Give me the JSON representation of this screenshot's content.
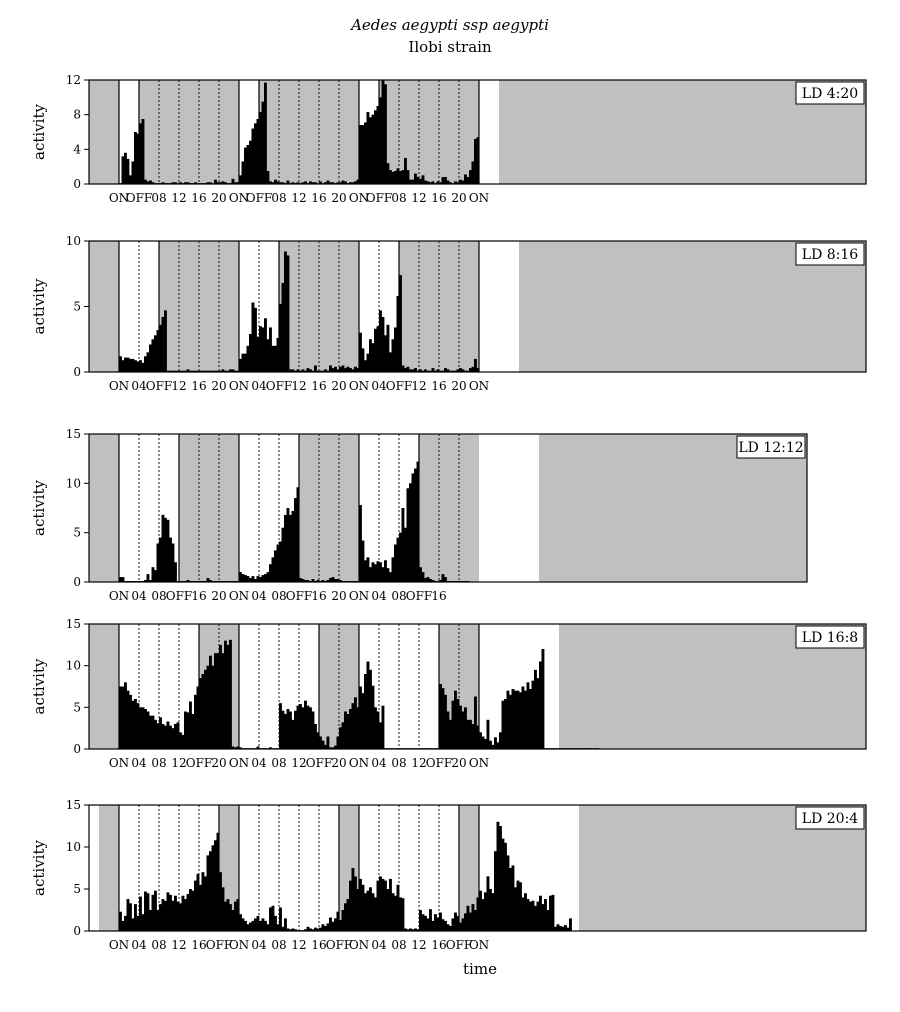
{
  "title": "Aedes aegypti ssp aegypti",
  "subtitle": "Ilobi strain",
  "xlabel": "time",
  "ylabel": "activity",
  "colors": {
    "dark": "#c0c0c0",
    "bar": "#000000",
    "light": "#ffffff"
  },
  "chart_data": [
    {
      "type": "bar",
      "label": "LD 4:20",
      "light_hours": 4,
      "ylim": [
        0,
        12
      ],
      "yticks": [
        0,
        4,
        8,
        12
      ],
      "days": 3,
      "xticks": [
        "ON",
        "OFF",
        "08",
        "12",
        "16",
        "20",
        "ON",
        "OFF",
        "08",
        "12",
        "16",
        "20",
        "ON",
        "OFF",
        "08",
        "12",
        "16",
        "20",
        "ON"
      ],
      "values": [
        0.1,
        3.2,
        3.6,
        2.9,
        1,
        2.6,
        6,
        5.8,
        7,
        7.5,
        0.5,
        0.3,
        0.4,
        0.2,
        0.1,
        0.1,
        0.1,
        0.2,
        0.1,
        0.1,
        0.1,
        0.2,
        0.2,
        0.1,
        0.2,
        0.1,
        0.2,
        0.2,
        0.1,
        0.1,
        0.2,
        0.1,
        0.1,
        0.1,
        0.1,
        0.2,
        0.2,
        0.1,
        0.5,
        0.2,
        0.2,
        0.3,
        0.2,
        0.1,
        0.1,
        0.6,
        0.2,
        0.2,
        1,
        2.6,
        4.2,
        4.5,
        5,
        6.4,
        7,
        7.5,
        8.3,
        9.5,
        11.7,
        1.5,
        0.3,
        0.2,
        0.5,
        0.3,
        0.2,
        0.2,
        0.1,
        0.4,
        0.1,
        0.2,
        0.1,
        0.2,
        0.1,
        0.2,
        0.3,
        0.1,
        0.3,
        0.2,
        0.2,
        0.1,
        0.3,
        0.1,
        0.2,
        0.4,
        0.2,
        0.2,
        0.1,
        0.2,
        0.2,
        0.4,
        0.3,
        0.1,
        0.2,
        0.2,
        0.3,
        0.5,
        6.8,
        6.8,
        7.1,
        8.3,
        7.7,
        8,
        8.5,
        9,
        10,
        12,
        11.5,
        2.4,
        1.6,
        1.4,
        1.5,
        1.8,
        1.5,
        1.6,
        3,
        1.6,
        0.5,
        0.5,
        1.2,
        0.8,
        0.6,
        1,
        0.4,
        0.3,
        0.2,
        0.3,
        0.1,
        0.3,
        0.2,
        0.8,
        0.8,
        0.4,
        0.2,
        0.1,
        0.3,
        0.2,
        0.5,
        0.4,
        1.1,
        0.8,
        1.6,
        2.6,
        5.2,
        5.4
      ]
    },
    {
      "type": "bar",
      "label": "LD 8:16",
      "light_hours": 8,
      "ylim": [
        0,
        10
      ],
      "yticks": [
        0,
        5,
        10
      ],
      "days": 3,
      "xticks": [
        "ON",
        "04",
        "OFF",
        "12",
        "16",
        "20",
        "ON",
        "04",
        "OFF",
        "12",
        "16",
        "20",
        "ON",
        "04",
        "OFF",
        "12",
        "16",
        "20",
        "ON"
      ],
      "values": [
        1.2,
        0.9,
        1.1,
        1.1,
        1,
        1,
        0.9,
        0.8,
        0.9,
        0.7,
        1.2,
        1.5,
        2.1,
        2.5,
        2.8,
        3.2,
        3.6,
        4.2,
        4.7,
        0.1,
        0.1,
        0.1,
        0.1,
        0.1,
        0.1,
        0.1,
        0.1,
        0.2,
        0.1,
        0.1,
        0.1,
        0.1,
        0.1,
        0.1,
        0.1,
        0.1,
        0.1,
        0.1,
        0.1,
        0.1,
        0.1,
        0.2,
        0.1,
        0.1,
        0.2,
        0.2,
        0.1,
        0.1,
        1,
        1.4,
        1.4,
        2,
        2.9,
        5.3,
        4.9,
        2.7,
        3.5,
        3.4,
        4.1,
        2.5,
        3.4,
        2,
        2,
        2.6,
        5.2,
        6.8,
        9.2,
        8.9,
        0.2,
        0.2,
        0.1,
        0.2,
        0.1,
        0.2,
        0.1,
        0.3,
        0.2,
        0.1,
        0.5,
        0.1,
        0.1,
        0.1,
        0.2,
        0.1,
        0.5,
        0.3,
        0.4,
        0.2,
        0.4,
        0.5,
        0.3,
        0.4,
        0.3,
        0.2,
        0.4,
        0.3,
        3,
        1.8,
        0.9,
        1.4,
        2.5,
        2.2,
        3.3,
        3.5,
        4.7,
        4.2,
        2.8,
        3.6,
        1.5,
        2.5,
        3.4,
        5.8,
        7.4,
        0.5,
        0.3,
        0.4,
        0.2,
        0.2,
        0.3,
        0.1,
        0.2,
        0.1,
        0.2,
        0.1,
        0.1,
        0.3,
        0.1,
        0.2,
        0.1,
        0.1,
        0.3,
        0.2,
        0.1,
        0.1,
        0.1,
        0.2,
        0.3,
        0.2,
        0.1,
        0.1,
        0.3,
        0.4,
        1,
        0.3
      ]
    },
    {
      "type": "bar",
      "label": "LD 12:12",
      "light_hours": 12,
      "ylim": [
        0,
        15
      ],
      "yticks": [
        0,
        5,
        10,
        15
      ],
      "days": 3,
      "partial_last_day_hours": 22,
      "xticks": [
        "ON",
        "04",
        "08",
        "OFF",
        "16",
        "20",
        "ON",
        "04",
        "08",
        "OFF",
        "16",
        "20",
        "ON",
        "04",
        "08",
        "OFF",
        "16"
      ],
      "values": [
        0.5,
        0.5,
        0.1,
        0.1,
        0.1,
        0.1,
        0.1,
        0.1,
        0.1,
        0.1,
        0.2,
        0.8,
        0.2,
        1.5,
        1.2,
        3.9,
        4.5,
        6.8,
        6.5,
        6.3,
        4.5,
        3.9,
        2,
        0.1,
        0.1,
        0.1,
        0.1,
        0.2,
        0.1,
        0.1,
        0.1,
        0.1,
        0.1,
        0.1,
        0.1,
        0.4,
        0.2,
        0.1,
        0.1,
        0.1,
        0.1,
        0.1,
        0.1,
        0.1,
        0.1,
        0.1,
        0.1,
        0.1,
        1,
        0.8,
        0.7,
        0.6,
        0.4,
        0.6,
        0.3,
        0.6,
        0.5,
        0.7,
        0.8,
        1,
        1.8,
        2.5,
        3.2,
        3.8,
        4.1,
        5.5,
        6.8,
        7.5,
        6.8,
        7.2,
        8.5,
        9.6,
        0.4,
        0.3,
        0.2,
        0.2,
        0.1,
        0.3,
        0.1,
        0.2,
        0.1,
        0.2,
        0.1,
        0.2,
        0.4,
        0.5,
        0.3,
        0.3,
        0.2,
        0.1,
        0.1,
        0.1,
        0.1,
        0.1,
        0.1,
        0.1,
        7.8,
        4.2,
        2.2,
        2.5,
        1.5,
        2,
        1.8,
        2.1,
        2,
        1.5,
        2.2,
        1.4,
        1,
        2.5,
        3.8,
        4.5,
        5,
        7.5,
        5.5,
        9.5,
        10,
        11,
        11.5,
        12.2,
        1.5,
        1,
        0.4,
        0.5,
        0.3,
        0.2,
        0.1,
        0.1,
        0.2,
        0.8,
        0.5,
        0.1,
        0.1,
        0.1,
        0.1,
        0.1,
        0.1,
        0.1,
        0.1,
        0.1
      ]
    },
    {
      "type": "bar",
      "label": "LD 16:8",
      "light_hours": 16,
      "ylim": [
        0,
        15
      ],
      "yticks": [
        0,
        5,
        10,
        15
      ],
      "days": 3,
      "xticks": [
        "ON",
        "04",
        "08",
        "12",
        "OFF",
        "20",
        "ON",
        "04",
        "08",
        "12",
        "OFF",
        "20",
        "ON",
        "04",
        "08",
        "12",
        "OFF",
        "20",
        "ON"
      ],
      "values": [
        7.5,
        7.5,
        8,
        7,
        6.5,
        5.8,
        6,
        5.5,
        5,
        5,
        4.8,
        4.5,
        4,
        4,
        3.5,
        3.1,
        3.8,
        3,
        2.8,
        3.3,
        2.8,
        2.5,
        3,
        3.2,
        2,
        1.7,
        4.5,
        4.4,
        5.7,
        4.2,
        6.5,
        7.5,
        8.5,
        9,
        9.5,
        10,
        11.2,
        10,
        11.5,
        11.5,
        12.5,
        11.5,
        13,
        12.5,
        13.1,
        0.3,
        0.2,
        0.3,
        0.2,
        0.1,
        0.1,
        0.1,
        0.1,
        0.1,
        0.1,
        0.3,
        0.1,
        0.1,
        0.1,
        0.1,
        0.2,
        0.1,
        0.1,
        0.1,
        5.5,
        4.6,
        4.2,
        4.8,
        4.5,
        3.5,
        4.6,
        5.2,
        5.4,
        5,
        5.8,
        5.2,
        5,
        4.5,
        3,
        2,
        1.5,
        1,
        0.5,
        1.5,
        0.2,
        0.2,
        0.4,
        1.5,
        2.6,
        3.2,
        4.5,
        4.2,
        4.8,
        5.5,
        6.2,
        5,
        7.5,
        6.7,
        9,
        10.5,
        9.5,
        7.6,
        5,
        4.5,
        3.2,
        5.2,
        0.1,
        0.1,
        0.1,
        0.1,
        0.1,
        0.1,
        0.1,
        0.1,
        0.1,
        0.1,
        0.1,
        0.1,
        0.1,
        0.1,
        0.1,
        0.1,
        0.1,
        0.1,
        0.1,
        0.1,
        0.1,
        0.1,
        7.8,
        7.3,
        6.5,
        4.5,
        3.5,
        5.8,
        7,
        6,
        5.2,
        4.5,
        5,
        3.5,
        3.5,
        3,
        6.3,
        2.8,
        2,
        1.5,
        1.2,
        3.5,
        1,
        0.5,
        1.4,
        0.8,
        2,
        5.8,
        6,
        7,
        6.5,
        7.2,
        7,
        7,
        6.8,
        7.5,
        7,
        8,
        7.2,
        8.2,
        9.5,
        8.5,
        10.5,
        12,
        0.1,
        0.1,
        0.1,
        0.1,
        0.1,
        0.1,
        0.1,
        0.1,
        0.1,
        0.1,
        0.1,
        0.1,
        0.1,
        0.1,
        0.1,
        0.1,
        0.1,
        0.1,
        0.1,
        0.1,
        0.1,
        0.1
      ]
    },
    {
      "type": "bar",
      "label": "LD 20:4",
      "light_hours": 20,
      "ylim": [
        0,
        15
      ],
      "yticks": [
        0,
        5,
        10,
        15
      ],
      "days": 3,
      "xticks": [
        "ON",
        "04",
        "08",
        "12",
        "16",
        "OFF",
        "ON",
        "04",
        "08",
        "12",
        "16",
        "OFF",
        "ON",
        "04",
        "08",
        "12",
        "16",
        "OFF",
        "ON"
      ],
      "values": [
        2.3,
        1.2,
        1.8,
        3.8,
        3.3,
        1.5,
        3.2,
        1.8,
        4.1,
        2,
        4.7,
        4.5,
        2.5,
        4.3,
        4.8,
        2.5,
        3.2,
        3.8,
        3.6,
        4.6,
        4.3,
        3.6,
        4.2,
        3.5,
        3.3,
        4.2,
        3.8,
        4.4,
        5,
        4.8,
        6,
        6.8,
        5.5,
        7,
        6.5,
        9,
        9.5,
        10.2,
        10.8,
        11.7,
        7,
        5.2,
        3.5,
        3.8,
        3.2,
        2.5,
        3.5,
        3.8,
        2,
        1.5,
        1.2,
        0.8,
        1,
        1.2,
        1.5,
        1.8,
        1.2,
        1.5,
        1.2,
        0.8,
        2.8,
        3,
        1.8,
        0.8,
        2.8,
        0.5,
        1.5,
        0.3,
        0.2,
        0.3,
        0.2,
        0.1,
        0.1,
        0.1,
        0.2,
        0.5,
        0.3,
        0.2,
        0.4,
        0.3,
        0.4,
        0.8,
        0.6,
        0.9,
        1.6,
        1.1,
        1.5,
        2.3,
        1.3,
        2.5,
        3.3,
        3.8,
        6,
        7.5,
        6.5,
        5,
        6.2,
        5.5,
        4.5,
        4.8,
        5.2,
        4.5,
        4,
        6,
        6.5,
        6.2,
        6,
        5,
        6.2,
        4.5,
        4.2,
        5.5,
        4,
        3.9,
        0.3,
        0.2,
        0.3,
        0.2,
        0.3,
        0.2,
        2.5,
        2,
        1.8,
        1.5,
        2.6,
        1.2,
        2,
        1.6,
        2.2,
        1.4,
        1.2,
        0.8,
        0.6,
        1.5,
        2.2,
        1.8,
        1,
        1.5,
        2.1,
        3,
        2.2,
        3.2,
        2.5,
        4,
        4.8,
        3.8,
        4.6,
        6.5,
        5,
        4.5,
        9.5,
        13,
        12.5,
        11,
        10.5,
        9,
        7.5,
        7.8,
        5.2,
        6,
        5.8,
        4,
        4.5,
        3.8,
        3.5,
        3.6,
        3,
        3.5,
        4.2,
        3.2,
        3.8,
        2.5,
        4.2,
        4.3,
        0.5,
        0.8,
        0.6,
        0.5,
        0.7,
        0.4,
        1.5
      ]
    }
  ]
}
